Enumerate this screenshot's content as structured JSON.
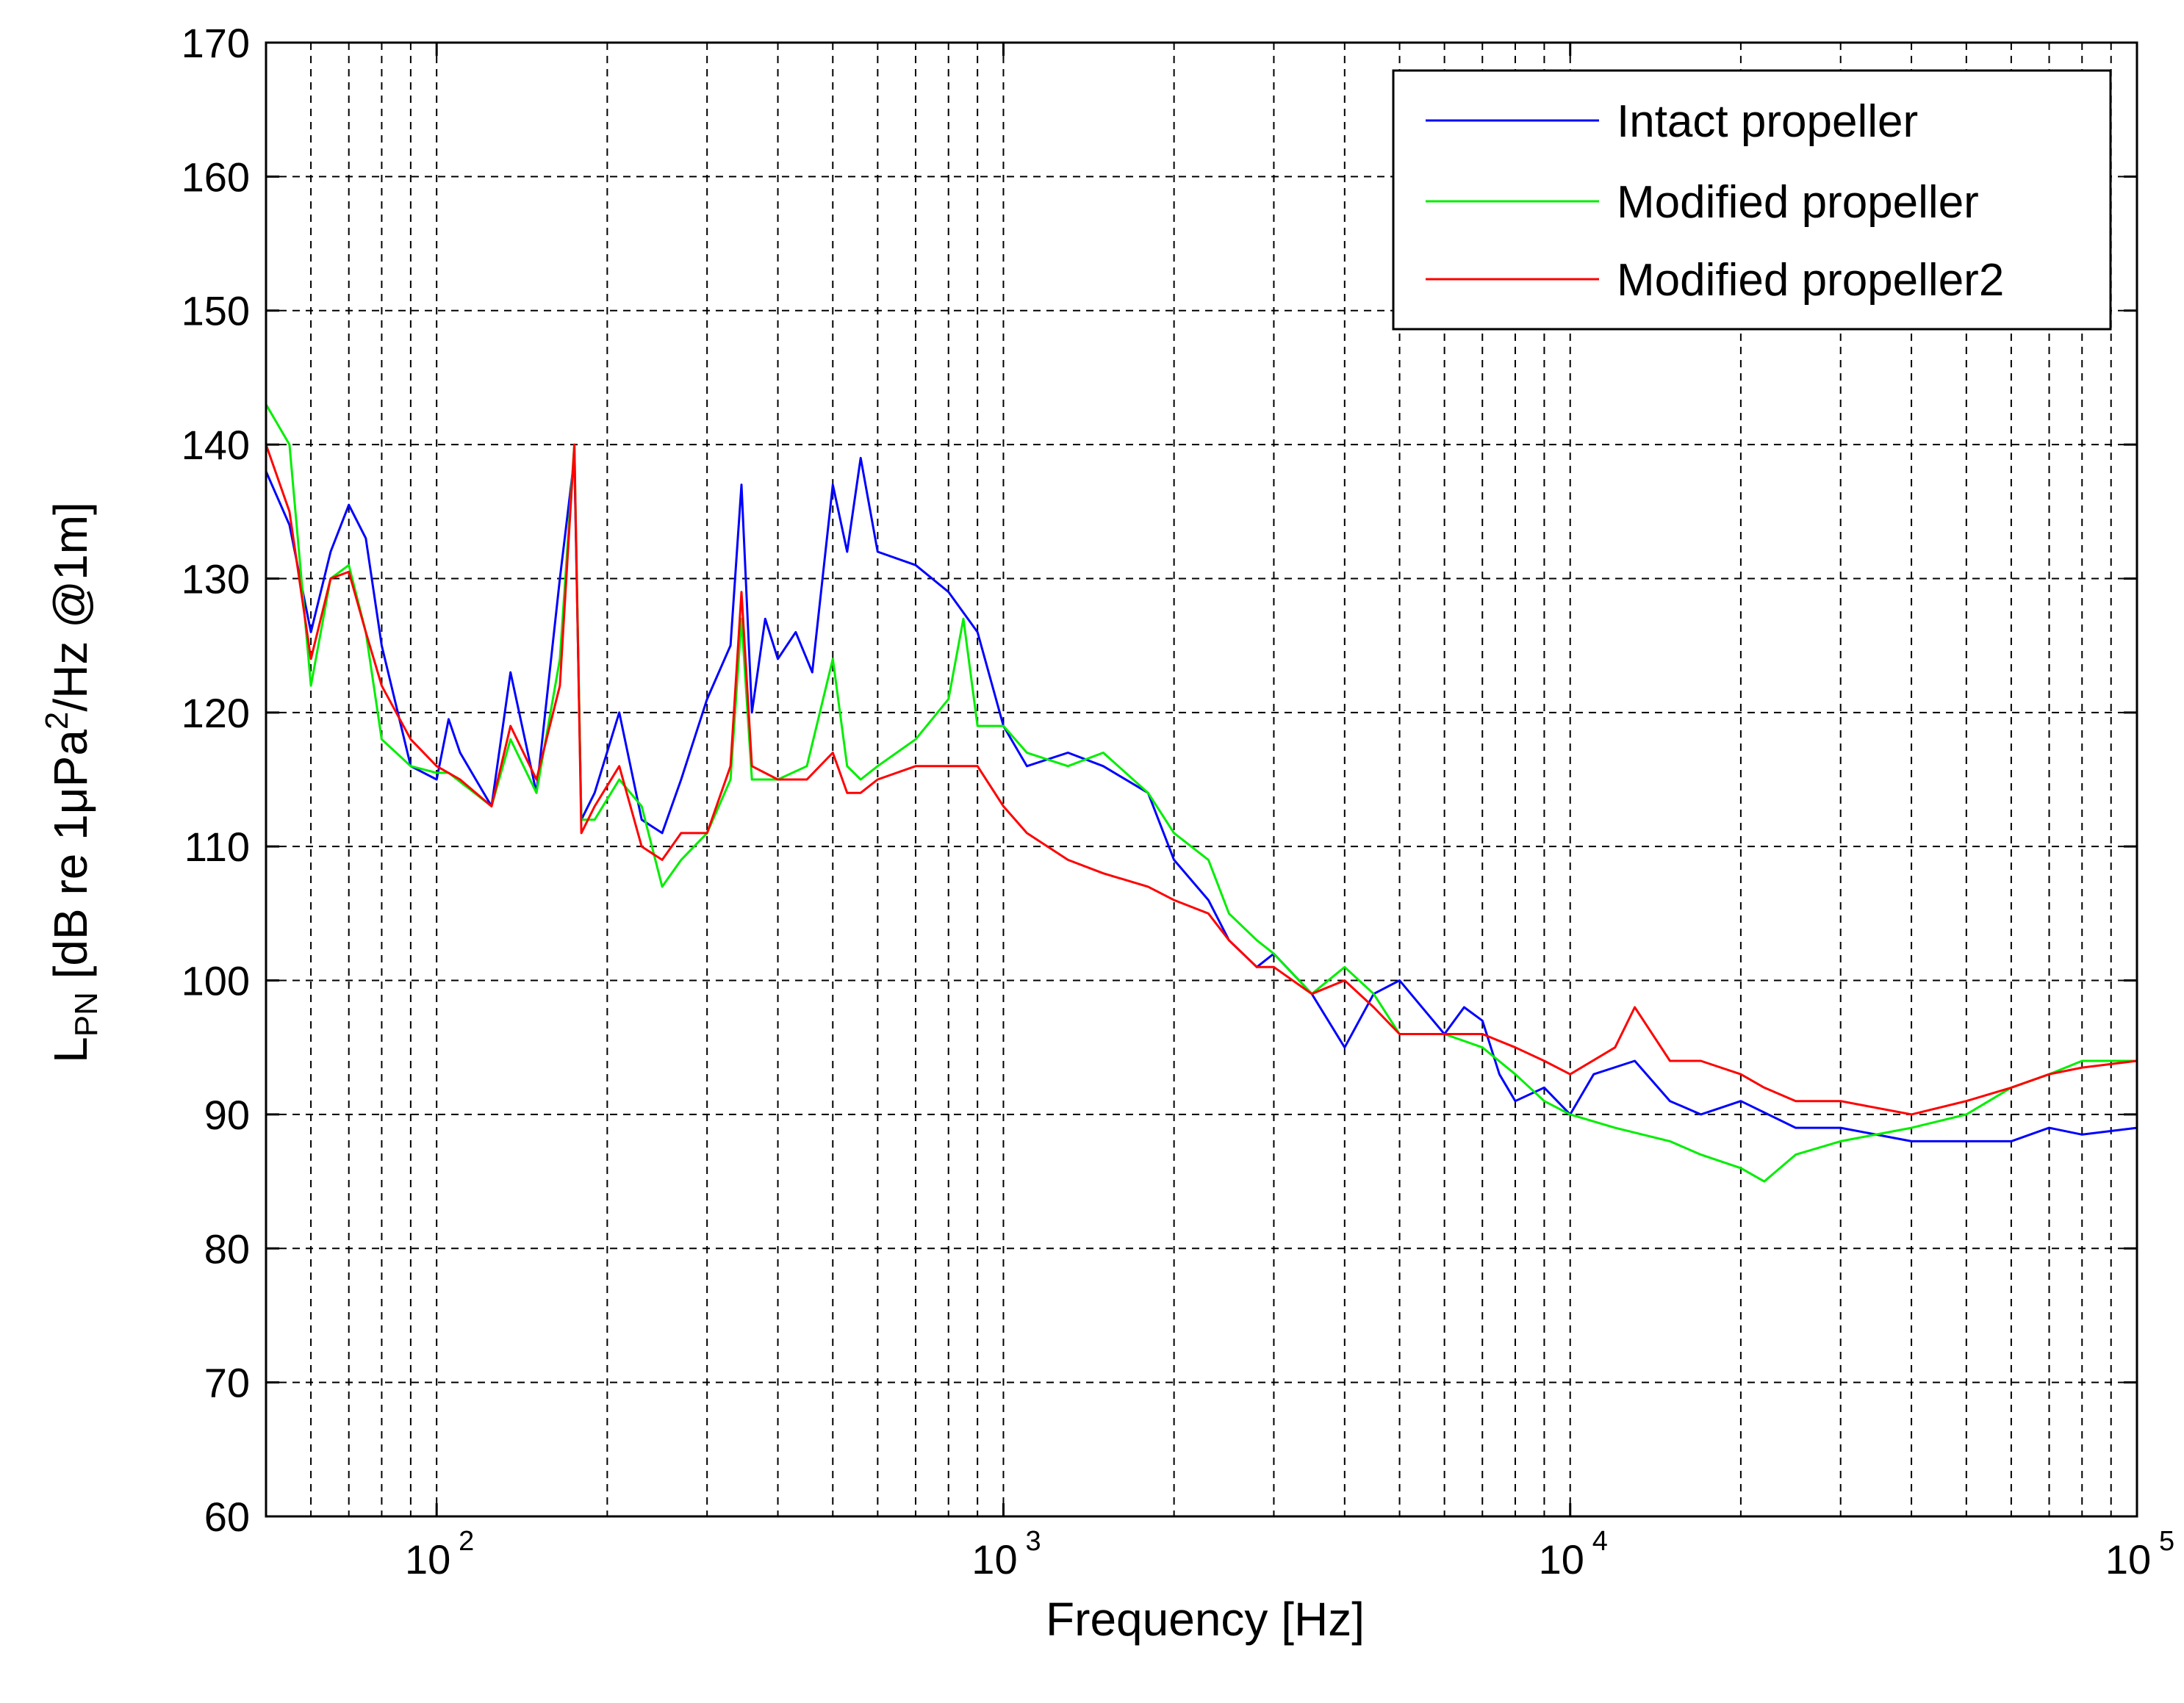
{
  "chart_data": {
    "type": "line",
    "title": "",
    "xlabel": "Frequency [Hz]",
    "ylabel": "L_PN [dB re 1μPa²/Hz @1m]",
    "ylabel_parts": {
      "main": "L",
      "sub": "PN",
      "mid": " [dB re 1",
      "mu": "μ",
      "pa": "Pa",
      "sup": "2",
      "tail": "/Hz @1m]"
    },
    "xscale": "log",
    "xlim": [
      50,
      100000
    ],
    "ylim": [
      60,
      170
    ],
    "xticks": [
      100,
      1000,
      10000,
      100000
    ],
    "xtick_labels": [
      {
        "base": "10",
        "exp": "2"
      },
      {
        "base": "10",
        "exp": "3"
      },
      {
        "base": "10",
        "exp": "4"
      },
      {
        "base": "10",
        "exp": "5"
      }
    ],
    "yticks": [
      "60",
      "70",
      "80",
      "90",
      "100",
      "110",
      "120",
      "130",
      "140",
      "150",
      "160",
      "170"
    ],
    "grid": true,
    "legend_position": "top-right",
    "series": [
      {
        "name": "Intact propeller",
        "color": "#0000ff",
        "x": [
          50,
          55,
          60,
          65,
          70,
          75,
          80,
          90,
          100,
          105,
          110,
          125,
          135,
          150,
          165,
          175,
          180,
          190,
          210,
          230,
          250,
          270,
          300,
          330,
          345,
          360,
          380,
          400,
          430,
          460,
          500,
          530,
          560,
          600,
          700,
          800,
          900,
          1000,
          1100,
          1300,
          1500,
          1800,
          2000,
          2300,
          2500,
          2800,
          3000,
          3500,
          4000,
          4500,
          5000,
          6000,
          6500,
          7000,
          7500,
          8000,
          9000,
          10000,
          11000,
          13000,
          15000,
          17000,
          20000,
          25000,
          30000,
          40000,
          50000,
          60000,
          70000,
          80000,
          100000
        ],
        "values": [
          138,
          134,
          126,
          132,
          135.5,
          133,
          125,
          116,
          115,
          119.5,
          117,
          113,
          123,
          114,
          130,
          139,
          112,
          114,
          120,
          112,
          111,
          115,
          121,
          125,
          137,
          120,
          127,
          124,
          126,
          123,
          137,
          132,
          139,
          132,
          131,
          129,
          126,
          119,
          116,
          117,
          116,
          114,
          109,
          106,
          103,
          101,
          102,
          99,
          95,
          99,
          100,
          96,
          98,
          97,
          93,
          91,
          92,
          90,
          93,
          94,
          91,
          90,
          91,
          89,
          89,
          88,
          88,
          88,
          89,
          88.5,
          89
        ]
      },
      {
        "name": "Modified propeller",
        "color": "#00ee00",
        "x": [
          50,
          55,
          60,
          65,
          70,
          75,
          80,
          90,
          100,
          105,
          125,
          135,
          150,
          165,
          175,
          180,
          190,
          210,
          230,
          250,
          270,
          300,
          330,
          345,
          360,
          400,
          450,
          500,
          530,
          560,
          600,
          700,
          800,
          850,
          900,
          1000,
          1100,
          1300,
          1500,
          1800,
          2000,
          2300,
          2500,
          2800,
          3000,
          3500,
          4000,
          4500,
          5000,
          6000,
          7000,
          8000,
          9000,
          10000,
          12000,
          15000,
          17000,
          20000,
          22000,
          25000,
          30000,
          40000,
          50000,
          60000,
          70000,
          80000,
          100000
        ],
        "values": [
          143,
          140,
          122,
          130,
          131,
          126,
          118,
          116,
          115.5,
          115.5,
          113,
          118,
          114,
          124,
          140,
          112,
          112,
          115,
          113,
          107,
          109,
          111,
          115,
          127,
          115,
          115,
          116,
          124,
          116,
          115,
          116,
          118,
          121,
          127,
          119,
          119,
          117,
          116,
          117,
          114,
          111,
          109,
          105,
          103,
          102,
          99,
          101,
          99,
          96,
          96,
          95,
          93,
          91,
          90,
          89,
          88,
          87,
          86,
          85,
          87,
          88,
          89,
          90,
          92,
          93,
          94,
          94
        ]
      },
      {
        "name": "Modified propeller2",
        "color": "#ff0000",
        "x": [
          50,
          55,
          60,
          65,
          70,
          75,
          80,
          90,
          100,
          110,
          125,
          135,
          150,
          165,
          175,
          180,
          190,
          210,
          230,
          250,
          270,
          300,
          330,
          345,
          360,
          400,
          450,
          500,
          530,
          560,
          600,
          700,
          800,
          900,
          1000,
          1100,
          1300,
          1500,
          1800,
          2000,
          2300,
          2500,
          2800,
          3000,
          3500,
          4000,
          4500,
          5000,
          6000,
          7000,
          8000,
          9000,
          10000,
          12000,
          13000,
          15000,
          17000,
          20000,
          22000,
          25000,
          30000,
          40000,
          50000,
          60000,
          70000,
          80000,
          100000
        ],
        "values": [
          140,
          135,
          124,
          130,
          130.5,
          126,
          122,
          118,
          116,
          115,
          113,
          119,
          115,
          122,
          140,
          111,
          113,
          116,
          110,
          109,
          111,
          111,
          116,
          129,
          116,
          115,
          115,
          117,
          114,
          114,
          115,
          116,
          116,
          116,
          113,
          111,
          109,
          108,
          107,
          106,
          105,
          103,
          101,
          101,
          99,
          100,
          98,
          96,
          96,
          96,
          95,
          94,
          93,
          95,
          98,
          94,
          94,
          93,
          92,
          91,
          91,
          90,
          91,
          92,
          93,
          93.5,
          94
        ]
      }
    ]
  }
}
